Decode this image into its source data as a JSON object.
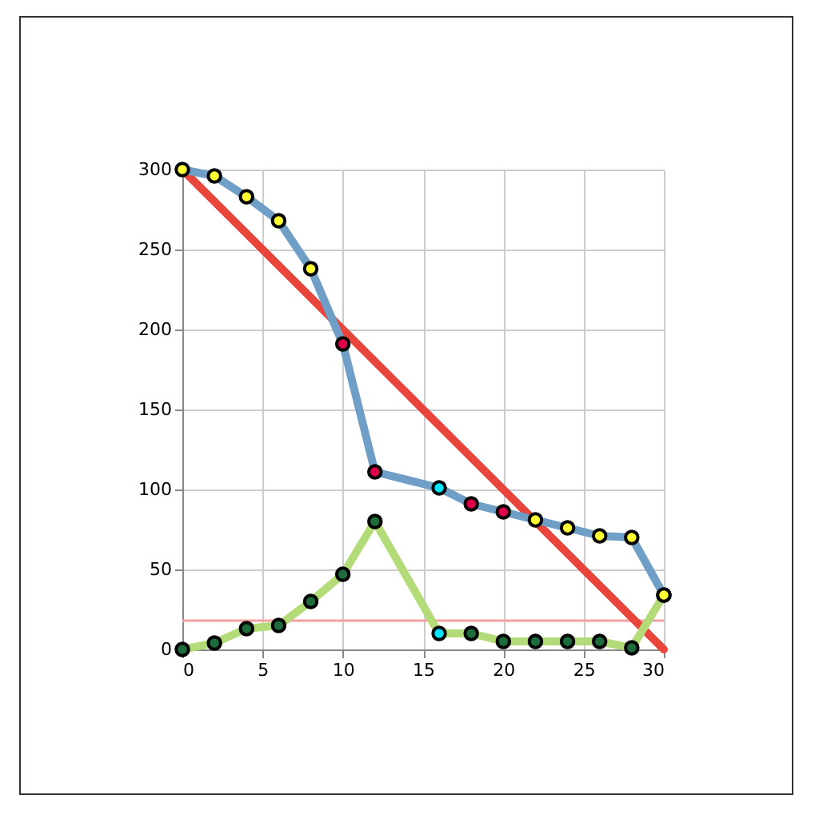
{
  "chart_data": {
    "type": "line",
    "xlim": [
      0,
      30
    ],
    "ylim": [
      0,
      300
    ],
    "xticks": [
      0,
      5,
      10,
      15,
      20,
      25,
      30
    ],
    "yticks": [
      0,
      50,
      100,
      150,
      200,
      250,
      300
    ],
    "grid": true,
    "ref_lines": [
      {
        "axis": "y",
        "value": 18,
        "color": "#f4a0a0"
      }
    ],
    "series": [
      {
        "color": "#e8453c",
        "x": [
          0,
          30
        ],
        "values": [
          300,
          0
        ],
        "marker": "none"
      },
      {
        "color": "#b3dc78",
        "x": [
          0,
          2,
          4,
          6,
          8,
          10,
          12,
          16,
          18,
          20,
          22,
          24,
          26,
          28,
          30
        ],
        "values": [
          0,
          4,
          13,
          15,
          30,
          47,
          80,
          10,
          10,
          5,
          5,
          5,
          5,
          1,
          34
        ],
        "marker": "circle",
        "colors": [
          "#1e6b3c",
          "#1e6b3c",
          "#1e6b3c",
          "#1e6b3c",
          "#1e6b3c",
          "#1e6b3c",
          "#1e6b3c",
          "#00e5ff",
          "#1e6b3c",
          "#1e6b3c",
          "#1e6b3c",
          "#1e6b3c",
          "#1e6b3c",
          "#1e6b3c",
          "#ffff33"
        ]
      },
      {
        "color": "#6f9ec6",
        "x": [
          0,
          2,
          4,
          6,
          8,
          10,
          12,
          16,
          18,
          20,
          22,
          24,
          26,
          28,
          30
        ],
        "values": [
          300,
          296,
          283,
          268,
          238,
          191,
          111,
          101,
          91,
          86,
          81,
          76,
          71,
          70,
          34
        ],
        "marker": "circle",
        "colors": [
          "#ffff33",
          "#ffff33",
          "#ffff33",
          "#ffff33",
          "#ffff33",
          "#e0004a",
          "#e0004a",
          "#00e5ff",
          "#e0004a",
          "#e0004a",
          "#ffff33",
          "#ffff33",
          "#ffff33",
          "#ffff33",
          "#ffff33"
        ]
      }
    ]
  }
}
